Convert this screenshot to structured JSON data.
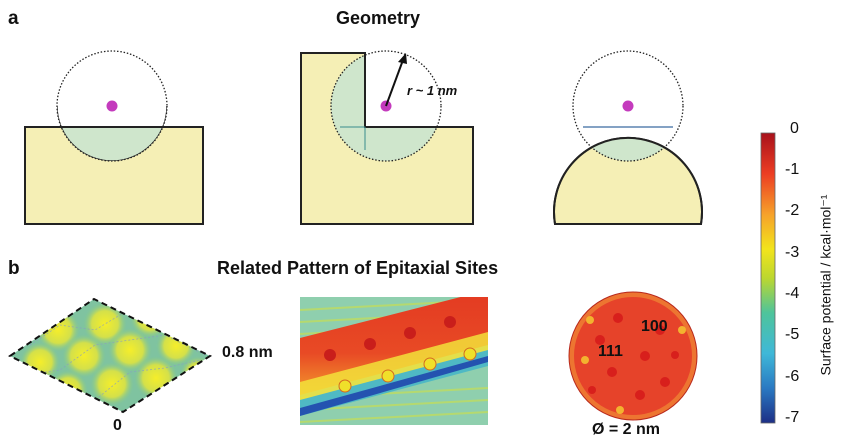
{
  "panel_a": {
    "letter": "a",
    "title": "Geometry",
    "radius_label": "r ~ 1 nm"
  },
  "panel_b": {
    "letter": "b",
    "title": "Related Pattern of Epitaxial Sites",
    "lattice_zero": "0",
    "lattice_size": "0.8 nm",
    "facet_100": "100",
    "facet_111": "111",
    "diameter": "Ø = 2 nm"
  },
  "colorbar": {
    "label": "Surface potential / kcal·mol⁻¹",
    "ticks": [
      "0",
      "-1",
      "-2",
      "-3",
      "-4",
      "-5",
      "-6",
      "-7"
    ],
    "range": [
      -7,
      0
    ],
    "colors": [
      "#1d2f86",
      "#2a79c2",
      "#3fb8d8",
      "#4ec49b",
      "#bcd72f",
      "#f2e41c",
      "#f6a12a",
      "#ec3d23",
      "#a8111b"
    ]
  },
  "colors": {
    "substrate": "#f5efb5",
    "overlap": "#cfe6cc",
    "atom": "#c43bbd"
  }
}
